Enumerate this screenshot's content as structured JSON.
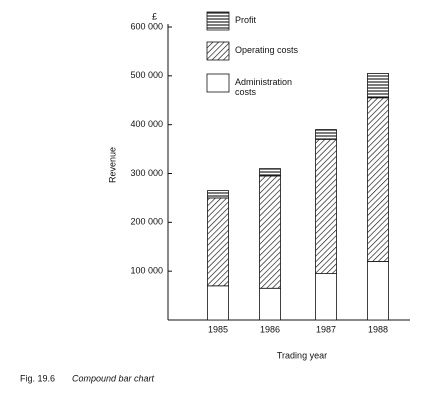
{
  "chart_data": {
    "type": "stacked_bar",
    "y_unit": "£",
    "y_label": "Revenue",
    "x_label": "Trading year",
    "categories": [
      "1985",
      "1986",
      "1987",
      "1988"
    ],
    "series": [
      {
        "name": "Administration costs",
        "color": "#ffffff",
        "values": [
          70000,
          65000,
          95000,
          120000
        ]
      },
      {
        "name": "Operating costs",
        "color": "#000000",
        "values": [
          180000,
          230000,
          275000,
          335000
        ]
      },
      {
        "name": "Profit",
        "color": "#000000",
        "values": [
          15000,
          15000,
          20000,
          50000
        ]
      }
    ],
    "ylim": [
      0,
      600000
    ],
    "yticks": [
      {
        "value": 100000,
        "label": "100 000"
      },
      {
        "value": 200000,
        "label": "200 000"
      },
      {
        "value": 300000,
        "label": "300 000"
      },
      {
        "value": 400000,
        "label": "400 000"
      },
      {
        "value": 500000,
        "label": "500 000"
      },
      {
        "value": 600000,
        "label": "600 000"
      }
    ],
    "caption": {
      "label": "Fig. 19.6",
      "text": "Compound bar chart"
    }
  }
}
